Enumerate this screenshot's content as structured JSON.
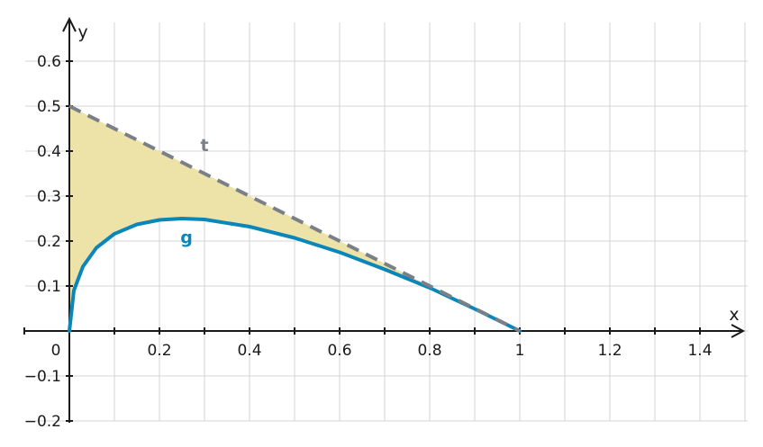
{
  "chart_data": {
    "type": "line",
    "xlabel": "x",
    "ylabel": "y",
    "xlim": [
      -0.1,
      1.5
    ],
    "ylim": [
      -0.2,
      0.68
    ],
    "x_ticks": [
      0.2,
      0.4,
      0.6,
      0.8,
      1,
      1.2,
      1.4
    ],
    "x_tick_labels": [
      "0.2",
      "0.4",
      "0.6",
      "0.8",
      "1",
      "1.2",
      "1.4"
    ],
    "y_ticks": [
      -0.2,
      -0.1,
      0.1,
      0.2,
      0.3,
      0.4,
      0.5,
      0.6
    ],
    "y_tick_labels": [
      "−0.2",
      "−0.1",
      "0.1",
      "0.2",
      "0.3",
      "0.4",
      "0.5",
      "0.6"
    ],
    "origin_label": "0",
    "grid": true,
    "series": [
      {
        "name": "g",
        "color": "#0a86b8",
        "style": "solid",
        "x": [
          0,
          0.01,
          0.03,
          0.06,
          0.1,
          0.15,
          0.2,
          0.25,
          0.3,
          0.4,
          0.5,
          0.6,
          0.7,
          0.8,
          0.9,
          1.0
        ],
        "y": [
          0,
          0.09,
          0.143,
          0.185,
          0.216,
          0.237,
          0.247,
          0.25,
          0.248,
          0.232,
          0.207,
          0.175,
          0.137,
          0.096,
          0.049,
          0
        ]
      },
      {
        "name": "t",
        "color": "#7a8088",
        "style": "dashed",
        "x": [
          0,
          1
        ],
        "y": [
          0.5,
          0
        ]
      }
    ],
    "shaded_region": {
      "between": [
        "t",
        "g"
      ],
      "x_range": [
        0,
        1
      ],
      "color": "#ede2a8"
    }
  }
}
